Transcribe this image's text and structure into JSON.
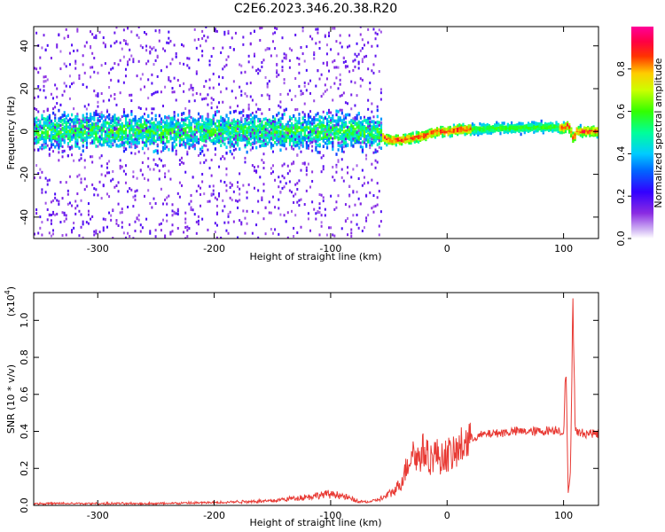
{
  "title": "C2E6.2023.346.20.38.R20",
  "chart_data": [
    {
      "type": "heatmap",
      "xlabel": "Height of straight line (km)",
      "ylabel": "Frequency (Hz)",
      "xlim": [
        -355,
        130
      ],
      "ylim": [
        -50,
        49
      ],
      "x_ticks": [
        {
          "value": -300,
          "label": "-300"
        },
        {
          "value": -200,
          "label": "-200"
        },
        {
          "value": -100,
          "label": "-100"
        },
        {
          "value": 0,
          "label": "0"
        },
        {
          "value": 100,
          "label": "100"
        }
      ],
      "y_ticks": [
        {
          "value": -40,
          "label": "-40"
        },
        {
          "value": -20,
          "label": "-20"
        },
        {
          "value": 0,
          "label": "0"
        },
        {
          "value": 20,
          "label": "20"
        },
        {
          "value": 40,
          "label": "40"
        }
      ],
      "colorbar": {
        "label": "Normalized spectral amplitude",
        "range": [
          0,
          1
        ],
        "colormap": "rainbow (violet-blue-cyan-green-yellow-red-magenta)",
        "ticks": [
          {
            "value": 0.0,
            "label": "0.0"
          },
          {
            "value": 0.2,
            "label": "0.2"
          },
          {
            "value": 0.4,
            "label": "0.4"
          },
          {
            "value": 0.6,
            "label": "0.6"
          },
          {
            "value": 0.8,
            "label": "0.8"
          }
        ]
      },
      "ridge": {
        "x": [
          -355,
          -60,
          -55,
          -50,
          -40,
          -30,
          -20,
          -10,
          0,
          10,
          20,
          40,
          60,
          80,
          95,
          100,
          103,
          105,
          108,
          110,
          115,
          130
        ],
        "freq": [
          0,
          0,
          -3,
          -4,
          -4,
          -3,
          -2,
          0,
          0,
          1,
          1,
          1.5,
          1.5,
          2,
          2,
          1.5,
          3,
          1,
          -4,
          0,
          0,
          0
        ]
      },
      "grid": false
    },
    {
      "type": "line",
      "xlabel": "Height of straight line (km)",
      "ylabel": "SNR (10 * v/v)",
      "ylabel_exponent": "(x10",
      "ylabel_exponent_power": "4",
      "ylabel_exponent_close": ")",
      "xlim": [
        -355,
        130
      ],
      "ylim": [
        0,
        1.15
      ],
      "x_ticks": [
        {
          "value": -300,
          "label": "-300"
        },
        {
          "value": -200,
          "label": "-200"
        },
        {
          "value": -100,
          "label": "-100"
        },
        {
          "value": 0,
          "label": "0"
        },
        {
          "value": 100,
          "label": "100"
        }
      ],
      "y_ticks": [
        {
          "value": 0.0,
          "label": "0.0"
        },
        {
          "value": 0.2,
          "label": "0.2"
        },
        {
          "value": 0.4,
          "label": "0.4"
        },
        {
          "value": 0.6,
          "label": "0.6"
        },
        {
          "value": 0.8,
          "label": "0.8"
        },
        {
          "value": 1.0,
          "label": "1.0"
        }
      ],
      "series": [
        {
          "color": "#e83a34",
          "x": [
            -355,
            -300,
            -250,
            -200,
            -180,
            -150,
            -130,
            -115,
            -105,
            -95,
            -85,
            -75,
            -65,
            -55,
            -45,
            -40,
            -35,
            -30,
            -25,
            -20,
            -15,
            -10,
            -5,
            0,
            5,
            10,
            15,
            20,
            30,
            40,
            60,
            80,
            95,
            100,
            102,
            104,
            106,
            108,
            110,
            115,
            130
          ],
          "y": [
            0.01,
            0.01,
            0.01,
            0.015,
            0.02,
            0.025,
            0.04,
            0.05,
            0.06,
            0.06,
            0.04,
            0.02,
            0.02,
            0.04,
            0.08,
            0.12,
            0.2,
            0.3,
            0.25,
            0.3,
            0.25,
            0.28,
            0.25,
            0.28,
            0.27,
            0.3,
            0.34,
            0.36,
            0.38,
            0.39,
            0.4,
            0.4,
            0.41,
            0.39,
            0.76,
            0.05,
            0.2,
            1.13,
            0.4,
            0.39,
            0.39
          ]
        }
      ],
      "grid": false
    }
  ]
}
